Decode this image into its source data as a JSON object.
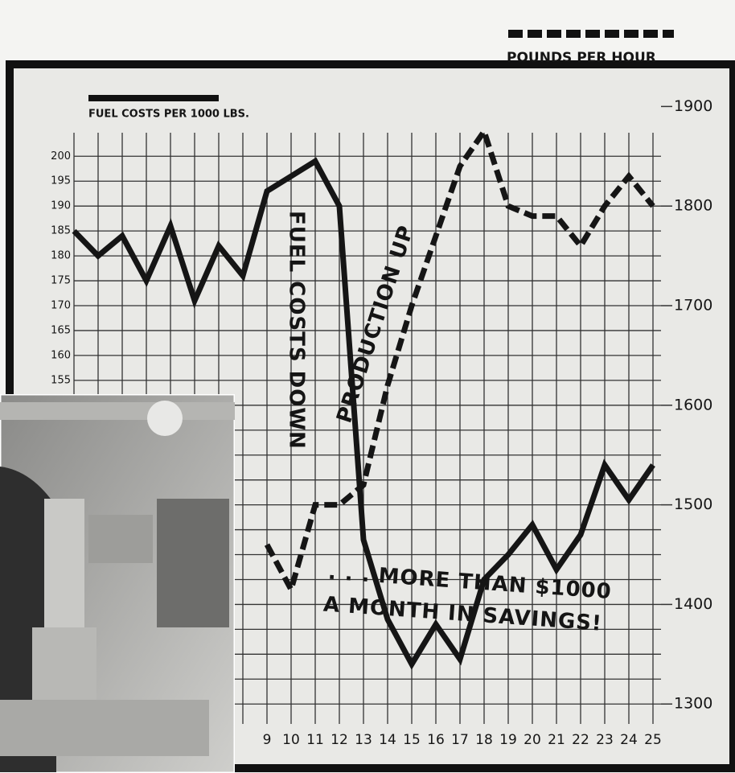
{
  "chart_data": {
    "type": "line",
    "categories": [
      null,
      null,
      null,
      null,
      null,
      null,
      null,
      null,
      "9",
      "10",
      "11",
      "12",
      "13",
      "14",
      "15",
      "16",
      "17",
      "18",
      "19",
      "20",
      "21",
      "22",
      "23",
      "24",
      "25"
    ],
    "series": [
      {
        "name": "FUEL COSTS PER 1000 LBS.",
        "color": "#151515",
        "line_style": "solid",
        "values": [
          185,
          180,
          184,
          175,
          186,
          171,
          182,
          176,
          193,
          196,
          199,
          190,
          123,
          107,
          98,
          106,
          99,
          115,
          120,
          126,
          117,
          124,
          138,
          131,
          138
        ]
      },
      {
        "name": "POUNDS PER HOUR",
        "color": "#151515",
        "line_style": "dashed",
        "axis": "y2",
        "values": [
          null,
          null,
          null,
          null,
          null,
          null,
          null,
          null,
          1460,
          1415,
          1500,
          1500,
          1520,
          1620,
          1700,
          1770,
          1840,
          1875,
          1800,
          1790,
          1790,
          1760,
          1800,
          1830,
          1800
        ]
      }
    ],
    "ylim": [
      86,
      212
    ],
    "yticks": [
      150,
      155,
      160,
      165,
      170,
      175,
      180,
      185,
      190,
      195,
      200
    ],
    "y2lim": [
      1280,
      1910
    ],
    "y2ticks": [
      1300,
      1400,
      1500,
      1600,
      1700,
      1800,
      1900
    ],
    "grid": true,
    "annotations": [
      "FUEL COSTS DOWN",
      "PRODUCTION UP",
      ". . . MORE THAN $1000",
      "A MONTH IN SAVINGS!"
    ]
  }
}
